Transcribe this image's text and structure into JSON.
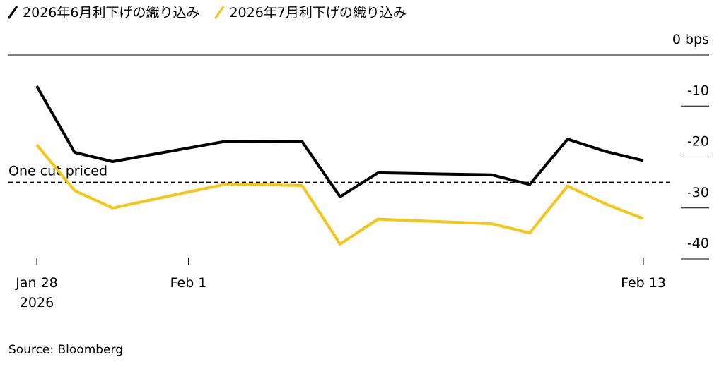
{
  "chart_data": {
    "type": "line",
    "x": [
      "2026-01-28",
      "2026-01-29",
      "2026-01-30",
      "2026-02-02",
      "2026-02-04",
      "2026-02-05",
      "2026-02-06",
      "2026-02-09",
      "2026-02-10",
      "2026-02-11",
      "2026-02-12",
      "2026-02-13"
    ],
    "series": [
      {
        "name": "2026年6月利下げの織り込み",
        "color": "#000000",
        "values": [
          -6.1,
          -19.1,
          -20.9,
          -16.9,
          -17.0,
          -27.8,
          -23.1,
          -23.5,
          -25.4,
          -16.5,
          -18.9,
          -20.7
        ]
      },
      {
        "name": "2026年7月利下げの織り込み",
        "color": "#f5c518",
        "values": [
          -17.6,
          -26.6,
          -30.0,
          -25.3,
          -25.6,
          -37.1,
          -32.2,
          -33.1,
          -34.9,
          -25.7,
          -29.2,
          -32.1
        ]
      }
    ],
    "ylim": [
      0,
      -40
    ],
    "yticks": [
      {
        "value": 0,
        "label": "0 bps"
      },
      -10,
      -20,
      -30,
      -40
    ],
    "xticks": [
      {
        "value": "2026-01-28",
        "label": "Jan 28 2026"
      },
      {
        "value": "2026-02-01",
        "label": "Feb 1"
      },
      {
        "value": "2026-02-13",
        "label": "Feb 13"
      }
    ],
    "annotation": {
      "text": "One cut priced",
      "value": -25
    },
    "source": "Source: Bloomberg"
  }
}
